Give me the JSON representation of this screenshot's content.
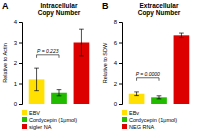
{
  "chart_data": [
    {
      "type": "bar",
      "title": "Intracellular\nCopy Number",
      "ylabel": "Relative to Actin",
      "categories": [
        "EBV",
        "Cordycepin (1μmol)",
        "sigler NA"
      ],
      "values": [
        1.2,
        0.55,
        3.0
      ],
      "errors": [
        0.55,
        0.15,
        0.65
      ],
      "colors": [
        "#FFE000",
        "#22BB00",
        "#DD0000"
      ],
      "ylim": [
        0,
        4
      ],
      "yticks": [
        0,
        1,
        2,
        3,
        4
      ],
      "tick_labels": "y",
      "legend": "bottom",
      "annotations": [
        {
          "text": "A"
        },
        {
          "text": "P = 0.223",
          "x": [
            0,
            1
          ],
          "y": 2.4
        }
      ]
    },
    {
      "type": "bar",
      "title": "Extracellular\nCopy Number",
      "ylabel": "Relative to SDW",
      "categories": [
        "EBv",
        "Cordycepin (1μmol)",
        "NEG RNA"
      ],
      "values": [
        1.0,
        0.65,
        6.7
      ],
      "errors": [
        0.18,
        0.15,
        0.22
      ],
      "colors": [
        "#FFE000",
        "#22BB00",
        "#DD0000"
      ],
      "ylim": [
        0,
        8
      ],
      "yticks": [
        0,
        2,
        4,
        6,
        8
      ],
      "tick_labels": "y",
      "legend": "bottom",
      "annotations": [
        {
          "text": "B"
        },
        {
          "text": "P = 0.0000",
          "x": [
            0,
            1
          ],
          "y": 2.56
        }
      ]
    }
  ]
}
